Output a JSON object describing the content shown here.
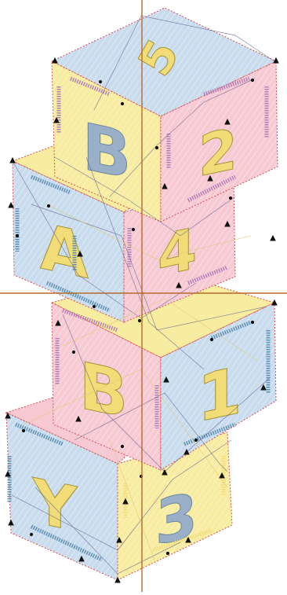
{
  "design": {
    "blocks": [
      {
        "id": "top-block",
        "front_letter": "B",
        "side_letter": "2",
        "top_letter": "5"
      },
      {
        "id": "second-block",
        "front_letter": "A",
        "side_letter": "4"
      },
      {
        "id": "third-block",
        "front_letter": "B",
        "side_letter": "1"
      },
      {
        "id": "bottom-block",
        "front_letter": "Y",
        "side_letter": "3"
      }
    ]
  },
  "colors": {
    "pink": "#f7c9d3",
    "blue": "#c9dcee",
    "yellow": "#f7ec9f",
    "letter_blue": "#9ab0c8",
    "letter_yellow": "#f2dc78",
    "stitch_purple": "#b07fb8",
    "stitch_blue": "#5b8fb2",
    "outline_red": "#d94a4a",
    "crosshair": "#b86a2a",
    "travel_lines": "#5a5a8a"
  }
}
